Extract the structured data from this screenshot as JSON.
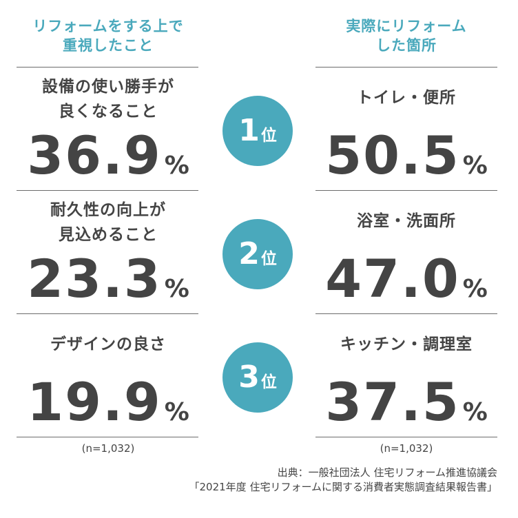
{
  "left_header": {
    "line1": "リフォームをする上で",
    "line2": "重視したこと"
  },
  "right_header": {
    "line1": "実際にリフォーム",
    "line2": "した箇所"
  },
  "rank_suffix": "位",
  "rows": [
    {
      "rank": "1",
      "left": {
        "label_line1": "設備の使い勝手が",
        "label_line2": "良くなること",
        "value": "36.9",
        "unit": "%"
      },
      "right": {
        "label_line1": "トイレ・便所",
        "value": "50.5",
        "unit": "%"
      }
    },
    {
      "rank": "2",
      "left": {
        "label_line1": "耐久性の向上が",
        "label_line2": "見込めること",
        "value": "23.3",
        "unit": "%"
      },
      "right": {
        "label_line1": "浴室・洗面所",
        "value": "47.0",
        "unit": "%"
      }
    },
    {
      "rank": "3",
      "left": {
        "label_line1": "デザインの良さ",
        "value": "19.9",
        "unit": "%"
      },
      "right": {
        "label_line1": "キッチン・調理室",
        "value": "37.5",
        "unit": "%"
      }
    }
  ],
  "left_sample": "(n=1,032)",
  "right_sample": "(n=1,032)",
  "source": {
    "line1": "出典：一般社団法人 住宅リフォーム推進協議会",
    "line2": "「2021年度 住宅リフォームに関する消費者実態調査結果報告書」"
  },
  "colors": {
    "accent": "#4aa9bc",
    "text": "#444444",
    "rule": "#6b6b6b"
  }
}
